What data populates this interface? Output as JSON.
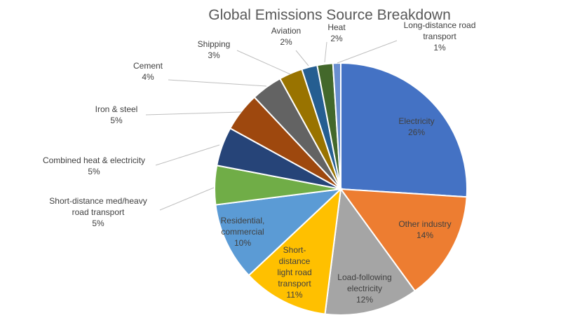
{
  "chart_data": {
    "type": "pie",
    "title": "Global Emissions Source Breakdown",
    "categories": [
      "Electricity",
      "Other industry",
      "Load-following electricity",
      "Short-distance light road transport",
      "Residential, commercial",
      "Short-distance med/heavy road transport",
      "Combined heat & electricity",
      "Iron & steel",
      "Cement",
      "Shipping",
      "Aviation",
      "Heat",
      "Long-distance road transport"
    ],
    "values": [
      26,
      14,
      12,
      11,
      10,
      5,
      5,
      5,
      4,
      3,
      2,
      2,
      1
    ],
    "value_labels": [
      "26%",
      "14%",
      "12%",
      "11%",
      "10%",
      "5%",
      "5%",
      "5%",
      "4%",
      "3%",
      "2%",
      "2%",
      "1%"
    ],
    "colors": [
      "#4472C4",
      "#ED7D31",
      "#A5A5A5",
      "#FFC000",
      "#5B9BD5",
      "#70AD47",
      "#264478",
      "#9E480E",
      "#636363",
      "#997300",
      "#255E91",
      "#43682B",
      "#698ED0"
    ],
    "label_positions": [
      "inside",
      "inside",
      "inside",
      "inside",
      "inside",
      "outside",
      "outside",
      "outside",
      "outside",
      "outside",
      "outside",
      "outside",
      "outside"
    ],
    "label_lines": [
      [
        "Electricity"
      ],
      [
        "Other industry"
      ],
      [
        "Load-following",
        "electricity"
      ],
      [
        "Short-",
        "distance",
        "light road",
        "transport"
      ],
      [
        "Residential,",
        "commercial"
      ],
      [
        "Short-distance med/heavy",
        "road transport"
      ],
      [
        "Combined heat & electricity"
      ],
      [
        "Iron & steel"
      ],
      [
        "Cement"
      ],
      [
        "Shipping"
      ],
      [
        "Aviation"
      ],
      [
        "Heat"
      ],
      [
        "Long-distance road",
        "transport"
      ]
    ],
    "start_angle_deg": 0,
    "direction": "clockwise",
    "legend": "none"
  }
}
